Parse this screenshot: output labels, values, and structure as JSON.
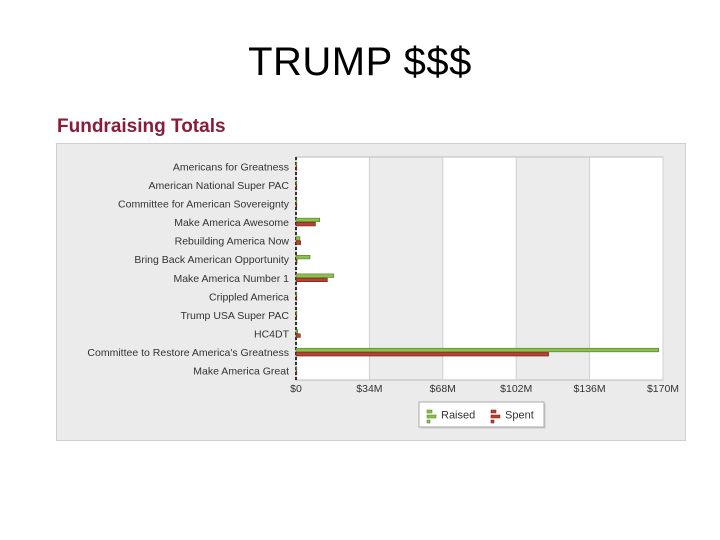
{
  "slide": {
    "title": "TRUMP $$$"
  },
  "chart_data": {
    "type": "bar",
    "orientation": "horizontal",
    "title": "Fundraising Totals",
    "categories": [
      "Americans for Greatness",
      "American National Super PAC",
      "Committee for American Sovereignty",
      "Make America Awesome",
      "Rebuilding America Now",
      "Bring Back American Opportunity",
      "Make America Number 1",
      "Crippled America",
      "Trump USA Super PAC",
      "HC4DT",
      "Committee to Restore America's Greatness",
      "Make America Great"
    ],
    "series": [
      {
        "name": "Raised",
        "values": [
          0.2,
          0.3,
          0.2,
          11.0,
          1.8,
          6.5,
          17.5,
          0.2,
          0.2,
          0.8,
          168.0,
          0.3
        ]
      },
      {
        "name": "Spent",
        "values": [
          0.1,
          0.2,
          0.1,
          9.0,
          2.2,
          0.5,
          14.5,
          0.1,
          0.1,
          2.0,
          117.0,
          0.2
        ]
      }
    ],
    "xlim": [
      0,
      170
    ],
    "x_ticks": [
      "$0",
      "$34M",
      "$68M",
      "$102M",
      "$136M",
      "$170M"
    ],
    "x_tick_values": [
      0,
      34,
      68,
      102,
      136,
      170
    ],
    "legend_position": "bottom-center",
    "grid": "alternating vertical bands",
    "colors": {
      "Raised": "#8bbf4e",
      "Spent": "#b5432f"
    }
  }
}
